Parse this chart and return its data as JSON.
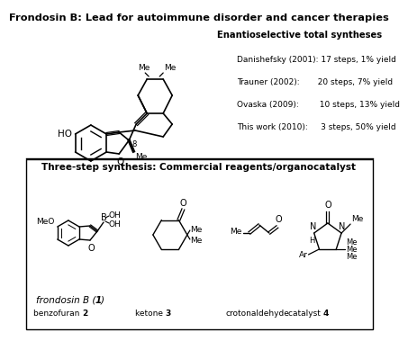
{
  "title": "Frondosin B: Lead for autoimmune disorder and cancer therapies",
  "bg_color": "#ffffff",
  "blue_box_color": "#b8cce4",
  "syntheses_header": "Enantioselective total syntheses",
  "syntheses_lines": [
    [
      "Danishefsky (2001): 17 steps, 1% yield",
      false
    ],
    [
      "Trauner (2002):       20 steps, 7% yield",
      false
    ],
    [
      "Ovaska (2009):        10 steps, 13% yield",
      false
    ],
    [
      "This work (2010):     3 steps, 50% yield",
      false
    ]
  ],
  "frondosin_label_normal": "frondosin B (",
  "frondosin_label_bold": "1",
  "frondosin_label_end": ")",
  "bottom_header": "Three-step synthesis: Commercial reagents/organocatalyst",
  "compound_labels": [
    [
      "benzofuran ",
      "2",
      ""
    ],
    [
      "ketone ",
      "3",
      ""
    ],
    [
      "crotonaldehyde",
      "",
      ""
    ],
    [
      "catalyst ",
      "4",
      ""
    ]
  ]
}
